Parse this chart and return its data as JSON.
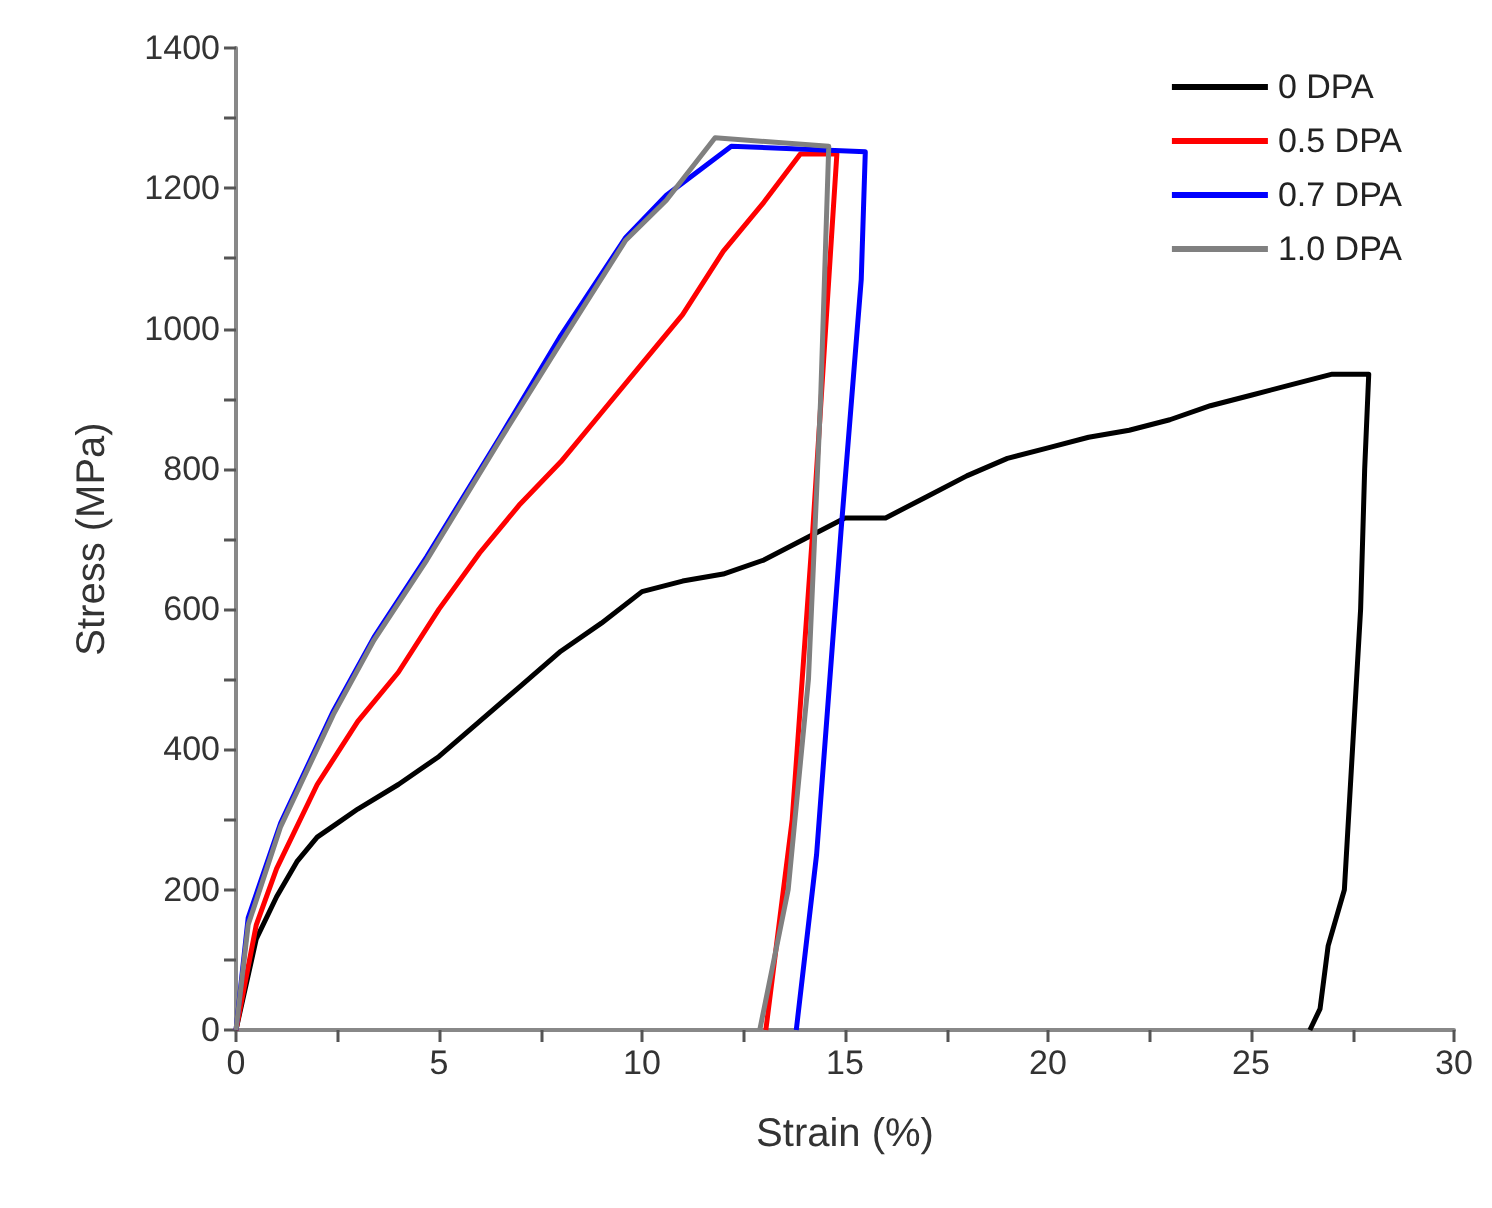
{
  "chart_data": {
    "type": "line",
    "xlabel": "Strain (%)",
    "ylabel": "Stress (MPa)",
    "xlim": [
      0,
      30
    ],
    "ylim": [
      0,
      1400
    ],
    "xticks": [
      0,
      {
        "value": 2.5,
        "label": null
      },
      5,
      {
        "value": 7.5,
        "label": null
      },
      10,
      {
        "value": 12.5,
        "label": null
      },
      15,
      {
        "value": 17.5,
        "label": null
      },
      20,
      {
        "value": 22.5,
        "label": null
      },
      25,
      {
        "value": 27.5,
        "label": null
      },
      30
    ],
    "yticks": [
      0,
      {
        "value": 100,
        "label": null
      },
      200,
      {
        "value": 300,
        "label": null
      },
      400,
      {
        "value": 500,
        "label": null
      },
      600,
      {
        "value": 700,
        "label": null
      },
      800,
      {
        "value": 900,
        "label": null
      },
      1000,
      {
        "value": 1100,
        "label": null
      },
      1200,
      {
        "value": 1300,
        "label": null
      },
      1400
    ],
    "legend": "top right",
    "grid": false,
    "line_style": "solid",
    "series": [
      {
        "name": "0 DPA",
        "color": "#000000",
        "x": [
          0,
          0.5,
          1,
          1.5,
          2,
          2.5,
          3,
          4,
          5,
          6,
          7,
          8,
          9,
          10,
          11,
          12,
          13,
          14,
          15,
          16,
          17,
          18,
          19,
          20,
          21,
          22,
          23,
          24,
          25,
          26,
          27,
          27.9,
          27.8,
          27.7,
          27.5,
          27.3,
          26.9,
          26.7,
          26.45
        ],
        "values": [
          0,
          130,
          190,
          240,
          275,
          295,
          315,
          350,
          390,
          440,
          490,
          540,
          580,
          625,
          640,
          650,
          670,
          700,
          730,
          730,
          760,
          790,
          815,
          830,
          845,
          855,
          870,
          890,
          905,
          920,
          935,
          935,
          800,
          600,
          400,
          200,
          120,
          30,
          0
        ]
      },
      {
        "name": "0.5 DPA",
        "color": "#ff0000",
        "x": [
          0,
          0.5,
          1,
          2,
          3,
          4,
          5,
          6,
          7,
          8,
          9,
          10,
          11,
          12,
          13,
          13.9,
          14.8,
          14.6,
          14.2,
          13.7,
          13.05
        ],
        "values": [
          0,
          150,
          230,
          350,
          440,
          510,
          600,
          680,
          750,
          810,
          880,
          950,
          1020,
          1110,
          1180,
          1249,
          1249,
          1070,
          707,
          300,
          0
        ]
      },
      {
        "name": "0.7 DPA",
        "color": "#0000ff",
        "x": [
          0,
          0.3,
          1.1,
          2.4,
          3.4,
          4.7,
          6.5,
          8,
          9.6,
          10.6,
          12.2,
          15.5,
          15.4,
          14.9,
          14.3,
          13.8
        ],
        "values": [
          0,
          160,
          295,
          455,
          560,
          675,
          845,
          990,
          1130,
          1190,
          1260,
          1252,
          1070,
          710,
          250,
          0
        ]
      },
      {
        "name": "1.0 DPA",
        "color": "#808080",
        "x": [
          0,
          0.3,
          1.1,
          2.4,
          3.4,
          4.7,
          6.5,
          8,
          9.6,
          10.6,
          11.8,
          14.6,
          14.4,
          14.1,
          13.6,
          12.9
        ],
        "values": [
          0,
          150,
          290,
          450,
          556,
          670,
          841,
          980,
          1126,
          1183,
          1272,
          1260,
          900,
          500,
          200,
          0
        ]
      }
    ]
  }
}
